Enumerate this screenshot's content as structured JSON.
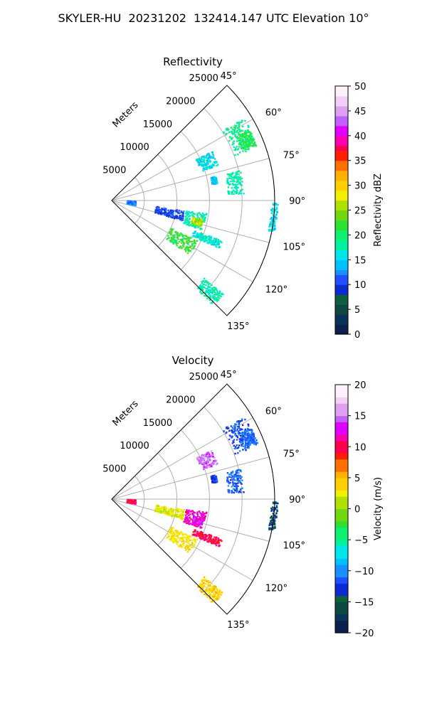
{
  "figure": {
    "suptitle": "SKYLER-HU  20231202  132414.147 UTC Elevation 10°"
  },
  "chart_data": [
    {
      "type": "heatmap",
      "title": "Reflectivity",
      "projection": "polar-sector",
      "radial_label": "Meters",
      "radial_ticks": [
        5000,
        10000,
        15000,
        20000,
        25000
      ],
      "radial_tick_labels": [
        "5000",
        "10000",
        "15000",
        "20000",
        "25000"
      ],
      "rmax": 25000,
      "angle_range": [
        45,
        135
      ],
      "angle_ticks": [
        45,
        60,
        75,
        90,
        105,
        120,
        135
      ],
      "angle_tick_labels": [
        "45°",
        "60°",
        "75°",
        "90°",
        "105°",
        "120°",
        "135°"
      ],
      "grid": true,
      "colorbar": {
        "label": "Reflectivity dBZ",
        "min": 0,
        "max": 50,
        "ticks": [
          0,
          5,
          10,
          15,
          20,
          25,
          30,
          35,
          40,
          45,
          50
        ],
        "tick_labels": [
          "0",
          "5",
          "10",
          "15",
          "20",
          "25",
          "30",
          "35",
          "40",
          "45",
          "50"
        ],
        "levels": 50,
        "colors": [
          "#0a1f4a",
          "#0c3357",
          "#0f4743",
          "#0e5f3c",
          "#0c2bd0",
          "#2050ff",
          "#1a90ff",
          "#00c0ff",
          "#00e5ea",
          "#00f0a0",
          "#10f070",
          "#30e030",
          "#70d810",
          "#b0e000",
          "#f0f000",
          "#ffd000",
          "#ffb000",
          "#ff7000",
          "#ff2000",
          "#ff0050",
          "#ff00b0",
          "#e000ff",
          "#c060ff",
          "#e0a0f0",
          "#f0d0f5",
          "#fff0fa"
        ]
      },
      "echoes": [
        {
          "az": 64,
          "r": 22000,
          "dr": 1900,
          "daz": 6,
          "value": 19
        },
        {
          "az": 66,
          "r": 22500,
          "dr": 1200,
          "daz": 3,
          "value": 21
        },
        {
          "az": 68,
          "r": 15800,
          "dr": 1400,
          "daz": 4,
          "value": 16
        },
        {
          "az": 82,
          "r": 19100,
          "dr": 1200,
          "daz": 5,
          "value": 18
        },
        {
          "az": 79,
          "r": 16000,
          "dr": 400,
          "daz": 2,
          "value": 15
        },
        {
          "az": 96,
          "r": 25000,
          "dr": 500,
          "daz": 5,
          "value": 16
        },
        {
          "az": 97,
          "r": 3100,
          "dr": 700,
          "daz": 5,
          "value": 12
        },
        {
          "az": 102,
          "r": 9100,
          "dr": 2200,
          "daz": 4,
          "value": 10
        },
        {
          "az": 103,
          "r": 13100,
          "dr": 1600,
          "daz": 5,
          "value": 18
        },
        {
          "az": 104,
          "r": 13500,
          "dr": 800,
          "daz": 2,
          "value": 26
        },
        {
          "az": 112,
          "r": 15800,
          "dr": 2300,
          "daz": 2,
          "value": 17
        },
        {
          "az": 120,
          "r": 12400,
          "dr": 2300,
          "daz": 5,
          "value": 22
        },
        {
          "az": 133,
          "r": 20500,
          "dr": 1900,
          "daz": 3,
          "value": 18
        }
      ]
    },
    {
      "type": "heatmap",
      "title": "Velocity",
      "projection": "polar-sector",
      "radial_label": "Meters",
      "radial_ticks": [
        5000,
        10000,
        15000,
        20000,
        25000
      ],
      "radial_tick_labels": [
        "5000",
        "10000",
        "15000",
        "20000",
        "25000"
      ],
      "rmax": 25000,
      "angle_range": [
        45,
        135
      ],
      "angle_ticks": [
        45,
        60,
        75,
        90,
        105,
        120,
        135
      ],
      "angle_tick_labels": [
        "45°",
        "60°",
        "75°",
        "90°",
        "105°",
        "120°",
        "135°"
      ],
      "grid": true,
      "colorbar": {
        "label": "Velocity (m/s)",
        "min": -20,
        "max": 20,
        "ticks": [
          -20,
          -15,
          -10,
          -5,
          0,
          5,
          10,
          15,
          20
        ],
        "tick_labels": [
          "−20",
          "−15",
          "−10",
          "−5",
          "0",
          "5",
          "10",
          "15",
          "20"
        ],
        "levels": 40,
        "colors": [
          "#0a1f4a",
          "#0c3357",
          "#0f4743",
          "#0e5f3c",
          "#0c2bd0",
          "#2050ff",
          "#1a90ff",
          "#00c0ff",
          "#00e5ea",
          "#00f0a0",
          "#10f070",
          "#30e030",
          "#70d810",
          "#b0e000",
          "#f0f000",
          "#ffd000",
          "#ffb000",
          "#ff7000",
          "#ff2000",
          "#ff0050",
          "#ff00b0",
          "#e000ff",
          "#c060ff",
          "#e0a0f0",
          "#f0d0f5",
          "#fff0fa"
        ]
      },
      "echoes": [
        {
          "az": 64,
          "r": 22000,
          "dr": 1900,
          "daz": 6,
          "value": -12
        },
        {
          "az": 66,
          "r": 22800,
          "dr": 1200,
          "daz": 3,
          "value": -11
        },
        {
          "az": 68,
          "r": 15800,
          "dr": 1300,
          "daz": 4,
          "value": 15
        },
        {
          "az": 82,
          "r": 19100,
          "dr": 1200,
          "daz": 5,
          "value": -11
        },
        {
          "az": 79,
          "r": 16000,
          "dr": 400,
          "daz": 2,
          "value": -12
        },
        {
          "az": 96,
          "r": 25000,
          "dr": 500,
          "daz": 5,
          "value": -14
        },
        {
          "az": 97,
          "r": 3100,
          "dr": 700,
          "daz": 5,
          "value": 10
        },
        {
          "az": 102,
          "r": 9100,
          "dr": 2200,
          "daz": 4,
          "value": 2
        },
        {
          "az": 103,
          "r": 13100,
          "dr": 1600,
          "daz": 5,
          "value": 12
        },
        {
          "az": 104,
          "r": 13600,
          "dr": 800,
          "daz": 2,
          "value": 13
        },
        {
          "az": 112,
          "r": 15800,
          "dr": 2300,
          "daz": 2,
          "value": 10
        },
        {
          "az": 120,
          "r": 12400,
          "dr": 2300,
          "daz": 5,
          "value": 3
        },
        {
          "az": 133,
          "r": 20500,
          "dr": 1900,
          "daz": 3,
          "value": 4
        }
      ]
    }
  ]
}
